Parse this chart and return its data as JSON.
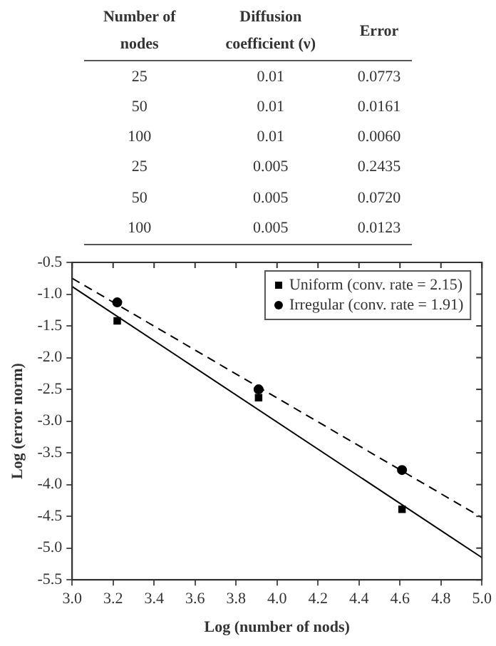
{
  "chart_data": [
    {
      "type": "other",
      "annotations": [
        "Number of nodes",
        "Diffusion coefficient (ν)",
        "Error",
        "25",
        "0.01",
        "0.0773",
        "50",
        "0.01",
        "0.0161",
        "100",
        "0.01",
        "0.0060",
        "25",
        "0.005",
        "0.2435",
        "50",
        "0.005",
        "0.0720",
        "100",
        "0.005",
        "0.0123"
      ]
    },
    {
      "type": "scatter",
      "xlabel": "Log (number of nods)",
      "ylabel": "Log (error norm)",
      "xlim": [
        3.0,
        5.0
      ],
      "xticks": [
        {
          "value": 3.0,
          "label": "3.0"
        },
        3.2,
        3.4,
        3.6,
        3.8,
        {
          "value": 4.0,
          "label": "4.0"
        },
        4.2,
        4.4,
        4.6,
        4.8,
        {
          "value": 5.0,
          "label": "5.0"
        }
      ],
      "ylim": [
        -5.5,
        -0.5
      ],
      "yticks": [
        -5.5,
        {
          "value": -5.0,
          "label": "-5.0"
        },
        -4.5,
        {
          "value": -4.0,
          "label": "-4.0"
        },
        -3.5,
        {
          "value": -3.0,
          "label": "-3.0"
        },
        -2.5,
        {
          "value": -2.0,
          "label": "-2.0"
        },
        -1.5,
        {
          "value": -1.0,
          "label": "-1.0"
        },
        -0.5
      ],
      "grid": false,
      "legend": "top right",
      "series": [
        {
          "name": "Uniform (conv. rate = 2.15)",
          "type": "scatter",
          "marker": "square",
          "color": "#000000",
          "x": [
            3.22,
            3.91,
            4.61
          ],
          "values": [
            -1.42,
            -2.63,
            -4.39
          ]
        },
        {
          "name": "Irregular (conv. rate = 1.91)",
          "type": "scatter",
          "marker": "circle",
          "color": "#000000",
          "x": [
            3.22,
            3.91,
            4.61
          ],
          "values": [
            -1.13,
            -2.5,
            -3.77
          ]
        },
        {
          "type": "line",
          "marker": "none",
          "line_style": "solid",
          "color": "#000000",
          "x": [
            3.0,
            5.0
          ],
          "values": [
            -0.88,
            -5.15
          ]
        },
        {
          "type": "line",
          "marker": "none",
          "line_style": "dashed",
          "color": "#000000",
          "x": [
            3.0,
            5.0
          ],
          "values": [
            -0.75,
            -4.52
          ]
        }
      ]
    }
  ]
}
